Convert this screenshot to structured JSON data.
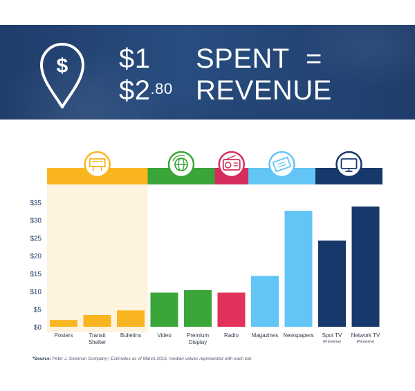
{
  "banner": {
    "amount_1": "$1",
    "amount_2_main": "$2",
    "amount_2_cents": ".80",
    "word_spent": "SPENT",
    "word_revenue": "REVENUE",
    "equals": "=",
    "icon": "dollar-map-pin-icon",
    "background_color": "#1f3d6b"
  },
  "chart_data": {
    "type": "bar",
    "categories": [
      [
        "Posters"
      ],
      [
        "Transit",
        "Shelter"
      ],
      [
        "Bulletins"
      ],
      [
        "Video"
      ],
      [
        "Premium",
        "Display"
      ],
      [
        "Radio"
      ],
      [
        "Magazines"
      ],
      [
        "Newspapers"
      ],
      [
        "Spot TV"
      ],
      [
        "Network TV"
      ]
    ],
    "category_notes": [
      "",
      "",
      "",
      "",
      "",
      "",
      "",
      "",
      "(Primetime)",
      "(Primetime)"
    ],
    "values": [
      1.9,
      3.3,
      4.6,
      9.6,
      10.3,
      9.6,
      14.3,
      32.6,
      24.2,
      33.8
    ],
    "bar_colors": [
      "#f9b520",
      "#f9b520",
      "#f9b520",
      "#3aa538",
      "#3aa538",
      "#e2325b",
      "#62c5f6",
      "#62c5f6",
      "#17386a",
      "#17386a"
    ],
    "yticks": [
      0,
      5,
      10,
      15,
      20,
      25,
      30,
      35
    ],
    "ytick_labels": [
      "$0",
      "$5",
      "$10",
      "$15",
      "$20",
      "$25",
      "$30",
      "$35"
    ],
    "ylim": [
      0,
      37
    ],
    "grid": false,
    "groups": [
      {
        "name": "Out of Home",
        "icon": "billboard-icon",
        "color": "#f9b520",
        "first": 0,
        "last": 2
      },
      {
        "name": "Digital",
        "icon": "globe-refresh-icon",
        "color": "#3aa538",
        "first": 3,
        "last": 4
      },
      {
        "name": "Radio",
        "icon": "radio-icon",
        "color": "#d52d5c",
        "first": 5,
        "last": 5
      },
      {
        "name": "Print",
        "icon": "newspaper-icon",
        "color": "#62c5f6",
        "first": 6,
        "last": 7
      },
      {
        "name": "TV",
        "icon": "television-icon",
        "color": "#17386a",
        "first": 8,
        "last": 9
      }
    ],
    "highlight_color": "#fdf3df"
  },
  "source": {
    "label": "*Source:",
    "company": " Peter J. Solomon Company | ",
    "note": "Estimates as of March 2016, median values represented with each bar."
  }
}
